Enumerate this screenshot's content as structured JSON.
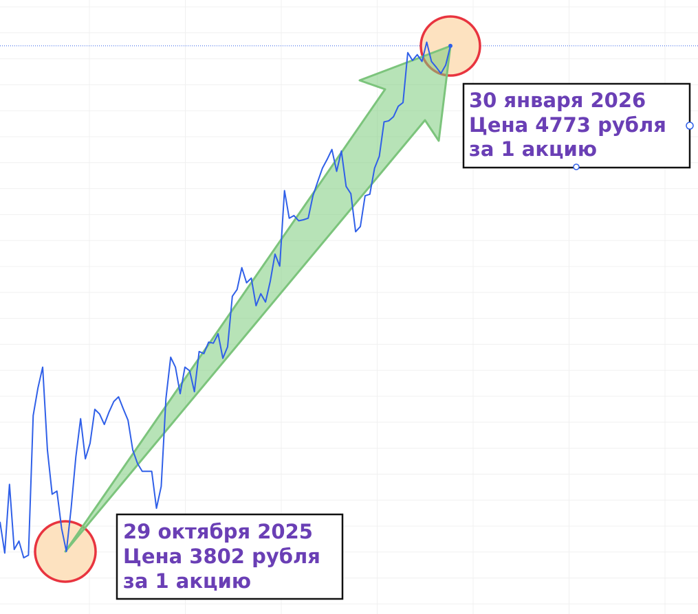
{
  "chart_data": {
    "type": "line",
    "values": [
      3859,
      3799,
      3931,
      3806,
      3822,
      3790,
      3795,
      4063,
      4116,
      4156,
      3997,
      3912,
      3918,
      3846,
      3802,
      3885,
      3984,
      4057,
      3980,
      4010,
      4075,
      4066,
      4046,
      4070,
      4090,
      4099,
      4076,
      4054,
      3997,
      3971,
      3956,
      3956,
      3956,
      3885,
      3927,
      4096,
      4175,
      4156,
      4105,
      4156,
      4149,
      4109,
      4186,
      4182,
      4204,
      4202,
      4220,
      4173,
      4195,
      4292,
      4305,
      4347,
      4318,
      4327,
      4274,
      4297,
      4281,
      4321,
      4373,
      4350,
      4495,
      4442,
      4447,
      4437,
      4439,
      4442,
      4485,
      4512,
      4538,
      4555,
      4574,
      4532,
      4571,
      4503,
      4489,
      4416,
      4426,
      4485,
      4488,
      4538,
      4561,
      4627,
      4629,
      4637,
      4657,
      4664,
      4760,
      4745,
      4756,
      4743,
      4780,
      4743,
      4732,
      4720,
      4736,
      4773
    ],
    "color": "#2f5fe8",
    "ylim": [
      3682,
      4861
    ],
    "grid": true,
    "annotations": [
      {
        "lines": [
          "29 октября 2025",
          "Цена 3802 рубля",
          "за 1 акцию"
        ]
      },
      {
        "lines": [
          "30 января 2026",
          "Цена 4773 рубля",
          "за 1 акцию"
        ]
      }
    ]
  }
}
